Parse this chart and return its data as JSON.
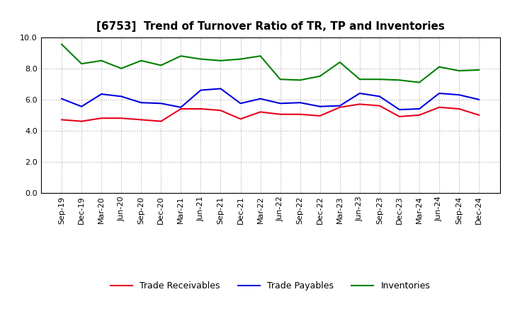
{
  "title": "[6753]  Trend of Turnover Ratio of TR, TP and Inventories",
  "x_labels": [
    "Sep-19",
    "Dec-19",
    "Mar-20",
    "Jun-20",
    "Sep-20",
    "Dec-20",
    "Mar-21",
    "Jun-21",
    "Sep-21",
    "Dec-21",
    "Mar-22",
    "Jun-22",
    "Sep-22",
    "Dec-22",
    "Mar-23",
    "Jun-23",
    "Sep-23",
    "Dec-23",
    "Mar-24",
    "Jun-24",
    "Sep-24",
    "Dec-24"
  ],
  "trade_receivables": [
    4.7,
    4.6,
    4.8,
    4.8,
    4.7,
    4.6,
    5.4,
    5.4,
    5.3,
    4.75,
    5.2,
    5.05,
    5.05,
    4.95,
    5.5,
    5.7,
    5.6,
    4.9,
    5.0,
    5.5,
    5.4,
    5.0
  ],
  "trade_payables": [
    6.05,
    5.55,
    6.35,
    6.2,
    5.8,
    5.75,
    5.5,
    6.6,
    6.7,
    5.75,
    6.05,
    5.75,
    5.8,
    5.55,
    5.6,
    6.4,
    6.2,
    5.35,
    5.4,
    6.4,
    6.3,
    6.0
  ],
  "inventories": [
    9.55,
    8.3,
    8.5,
    8.0,
    8.5,
    8.2,
    8.8,
    8.6,
    8.5,
    8.6,
    8.8,
    7.3,
    7.25,
    7.5,
    8.4,
    7.3,
    7.3,
    7.25,
    7.1,
    8.1,
    7.85,
    7.9
  ],
  "ylim": [
    0.0,
    10.0
  ],
  "yticks": [
    0.0,
    2.0,
    4.0,
    6.0,
    8.0,
    10.0
  ],
  "color_tr": "#e8001c",
  "color_tp": "#0000dd",
  "color_inv": "#008000",
  "legend_labels": [
    "Trade Receivables",
    "Trade Payables",
    "Inventories"
  ],
  "line_width": 1.5,
  "bg_color": "#ffffff",
  "title_fontsize": 11,
  "tick_fontsize": 8,
  "legend_fontsize": 9
}
